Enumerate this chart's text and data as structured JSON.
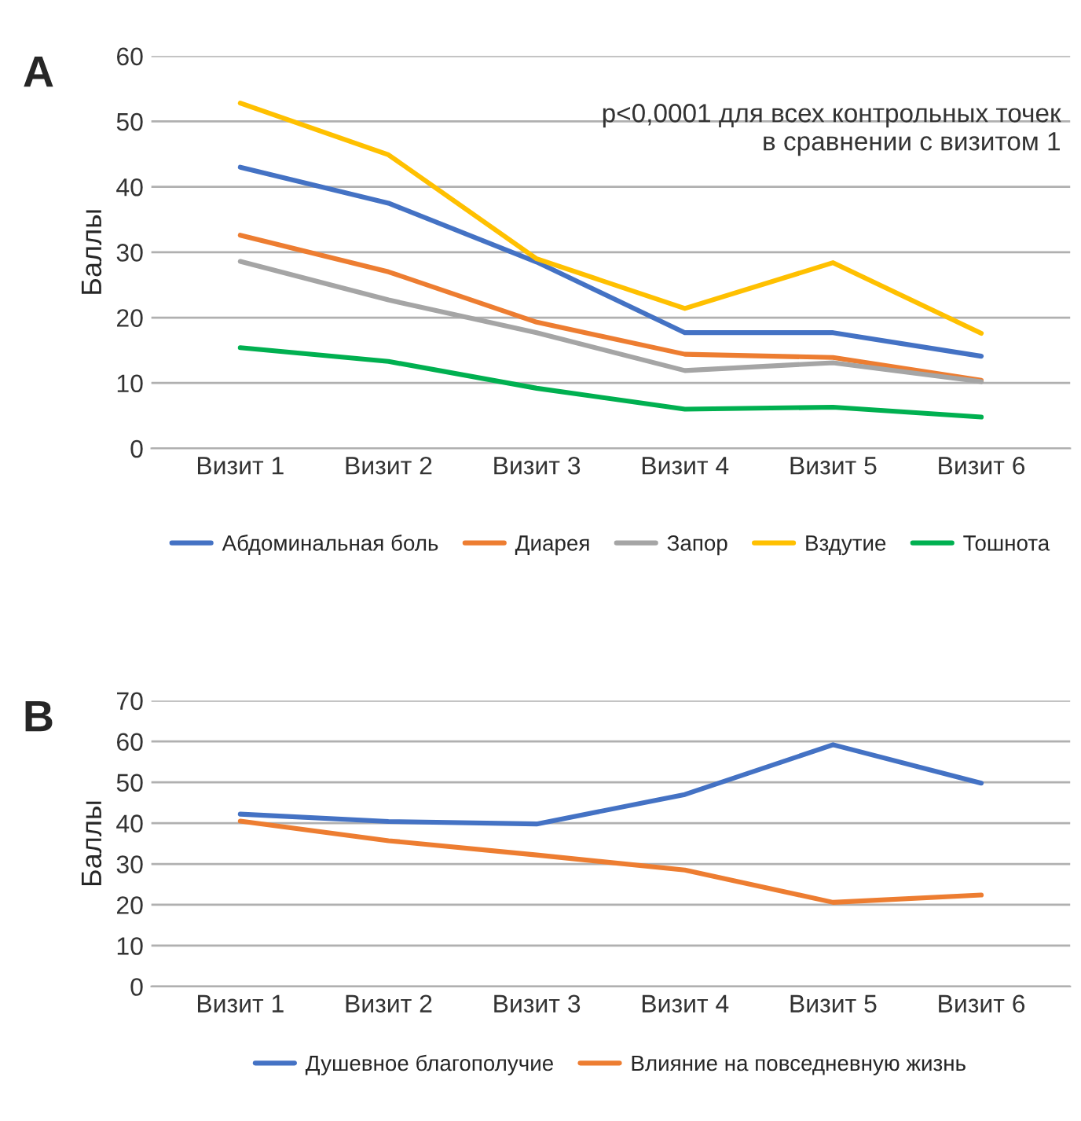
{
  "chart_data": [
    {
      "type": "line",
      "title": "A",
      "ylabel": "Баллы",
      "categories": [
        "Визит 1",
        "Визит 2",
        "Визит 3",
        "Визит 4",
        "Визит 5",
        "Визит 6"
      ],
      "series": [
        {
          "name": "Абдоминальная боль",
          "color": "#4472c4",
          "values": [
            43,
            37.5,
            28.5,
            17.7,
            17.7,
            14.1
          ]
        },
        {
          "name": "Диарея",
          "color": "#ed7d31",
          "values": [
            32.6,
            27,
            19.3,
            14.4,
            13.9,
            10.4
          ]
        },
        {
          "name": "Запор",
          "color": "#a5a5a5",
          "values": [
            28.6,
            22.7,
            17.7,
            11.9,
            13.1,
            10.2
          ]
        },
        {
          "name": "Вздутие",
          "color": "#ffc000",
          "values": [
            52.8,
            44.9,
            29,
            21.4,
            28.4,
            17.6
          ]
        },
        {
          "name": "Тошнота",
          "color": "#00b050",
          "values": [
            15.4,
            13.3,
            9.2,
            6.0,
            6.3,
            4.8
          ]
        }
      ],
      "ylim": [
        0,
        60
      ],
      "yticks": [
        0,
        10,
        20,
        30,
        40,
        50,
        60
      ],
      "grid": "y",
      "legend": "bottom",
      "marker": "none",
      "line_style": "solid",
      "annotations": [
        "p<0,0001 для всех контрольных точек\nв сравнении с визитом 1"
      ]
    },
    {
      "type": "line",
      "title": "B",
      "ylabel": "Баллы",
      "categories": [
        "Визит 1",
        "Визит 2",
        "Визит 3",
        "Визит 4",
        "Визит 5",
        "Визит 6"
      ],
      "series": [
        {
          "name": "Душевное благополучие",
          "color": "#4472c4",
          "values": [
            42.2,
            40.4,
            39.8,
            47,
            59.2,
            49.8
          ]
        },
        {
          "name": "Влияние на повседневную жизнь",
          "color": "#ed7d31",
          "values": [
            40.5,
            35.7,
            32.2,
            28.5,
            20.6,
            22.4
          ]
        }
      ],
      "ylim": [
        0,
        70
      ],
      "yticks": [
        0,
        10,
        20,
        30,
        40,
        50,
        60,
        70
      ],
      "grid": "y",
      "legend": "bottom",
      "marker": "none",
      "line_style": "solid"
    }
  ]
}
